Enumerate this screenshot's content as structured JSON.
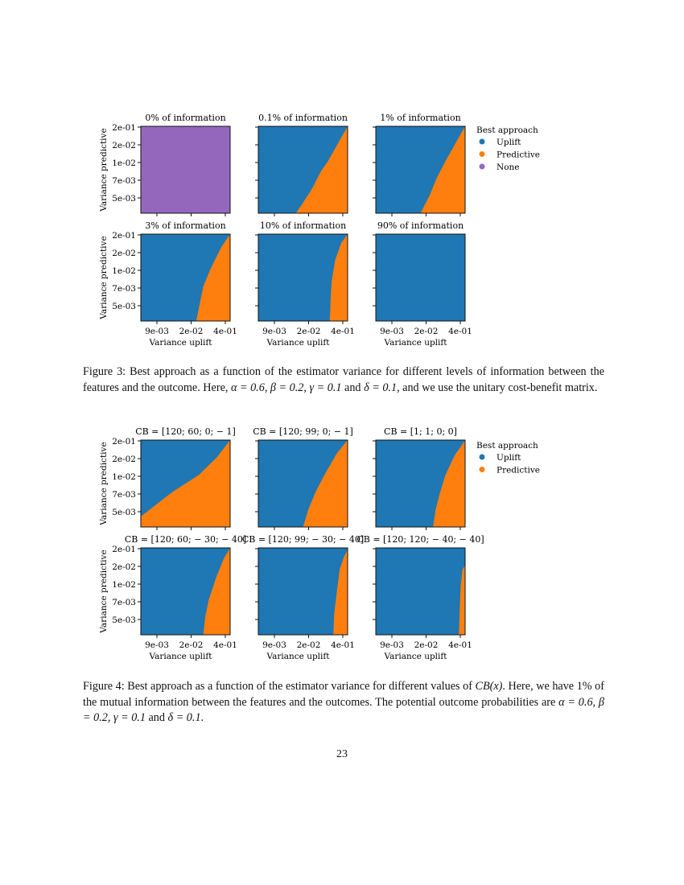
{
  "colors": {
    "uplift": "#1f77b4",
    "predictive": "#ff7f0e",
    "none": "#9467bd"
  },
  "figure3": {
    "panel_titles": [
      "0% of information",
      "0.1% of information",
      "1% of information",
      "3% of information",
      "10% of information",
      "90% of information"
    ],
    "ylabel": "Variance predictive",
    "xlabel": "Variance uplift",
    "yticks": [
      "2e-01",
      "2e-02",
      "1e-02",
      "7e-03",
      "5e-03"
    ],
    "xticks": [
      "9e-03",
      "2e-02",
      "4e-01"
    ],
    "legend": {
      "title": "Best approach",
      "entries": [
        "Uplift",
        "Predictive",
        "None"
      ]
    },
    "caption_label": "Figure 3:",
    "caption_parts": [
      "Best approach as a function of the estimator variance for different levels of information between the features and the outcome. Here, ",
      "α = 0.6, β = 0.2, γ = 0.1",
      " and ",
      "δ = 0.1",
      ", and we use the unitary cost-benefit matrix."
    ]
  },
  "figure4": {
    "panel_titles": [
      "CB = [120; 60; 0; − 1]",
      "CB = [120; 99; 0; − 1]",
      "CB = [1; 1; 0; 0]",
      "CB = [120; 60; − 30; − 40]",
      "CB = [120; 99; − 30; − 40]",
      "CB = [120; 120; − 40; − 40]"
    ],
    "ylabel": "Variance predictive",
    "xlabel": "Variance uplift",
    "yticks": [
      "2e-01",
      "2e-02",
      "1e-02",
      "7e-03",
      "5e-03"
    ],
    "xticks": [
      "9e-03",
      "2e-02",
      "4e-01"
    ],
    "legend": {
      "title": "Best approach",
      "entries": [
        "Uplift",
        "Predictive"
      ]
    },
    "caption_label": "Figure 4:",
    "caption_parts": [
      "Best approach as a function of the estimator variance for different values of ",
      "CB(x)",
      ". Here, we have ",
      "1%",
      " of the mutual information between the features and the outcomes. The potential outcome probabilities are ",
      "α = 0.6, β = 0.2, γ = 0.1",
      " and ",
      "δ = 0.1",
      "."
    ]
  },
  "page_number": "23"
}
